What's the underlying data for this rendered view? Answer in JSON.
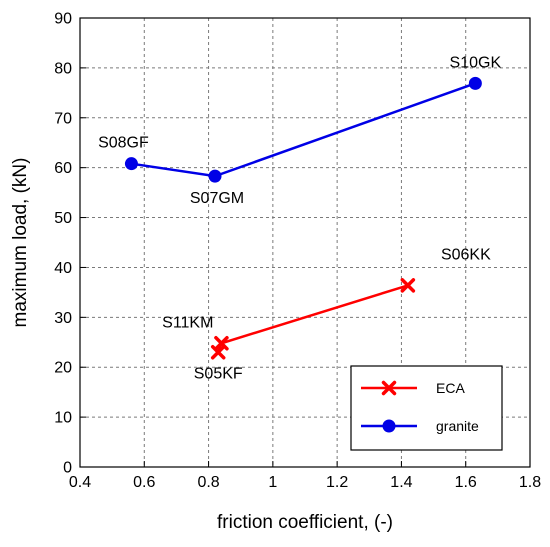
{
  "chart_data": {
    "type": "line",
    "xlabel": "friction coefficient, (-)",
    "ylabel": "maximum load, (kN)",
    "xlim": [
      0.4,
      1.8
    ],
    "ylim": [
      0,
      90
    ],
    "xticks": [
      "0.4",
      "0.6",
      "0.8",
      "1",
      "1.2",
      "1.4",
      "1.6",
      "1.8"
    ],
    "yticks": [
      "0",
      "10",
      "20",
      "30",
      "40",
      "50",
      "60",
      "70",
      "80",
      "90"
    ],
    "grid": true,
    "legend_position": "bottom-right",
    "series": [
      {
        "name": "ECA",
        "color": "#ff0000",
        "marker": "x",
        "points": [
          {
            "x": 0.83,
            "y": 23.0,
            "label": "S05KF"
          },
          {
            "x": 0.84,
            "y": 24.8,
            "label": "S11KM"
          },
          {
            "x": 1.42,
            "y": 36.4,
            "label": "S06KK"
          }
        ]
      },
      {
        "name": "granite",
        "color": "#0000e6",
        "marker": "circle",
        "points": [
          {
            "x": 0.56,
            "y": 60.8,
            "label": "S08GF"
          },
          {
            "x": 0.82,
            "y": 58.3,
            "label": "S07GM"
          },
          {
            "x": 1.63,
            "y": 76.9,
            "label": "S10GK"
          }
        ]
      }
    ]
  }
}
